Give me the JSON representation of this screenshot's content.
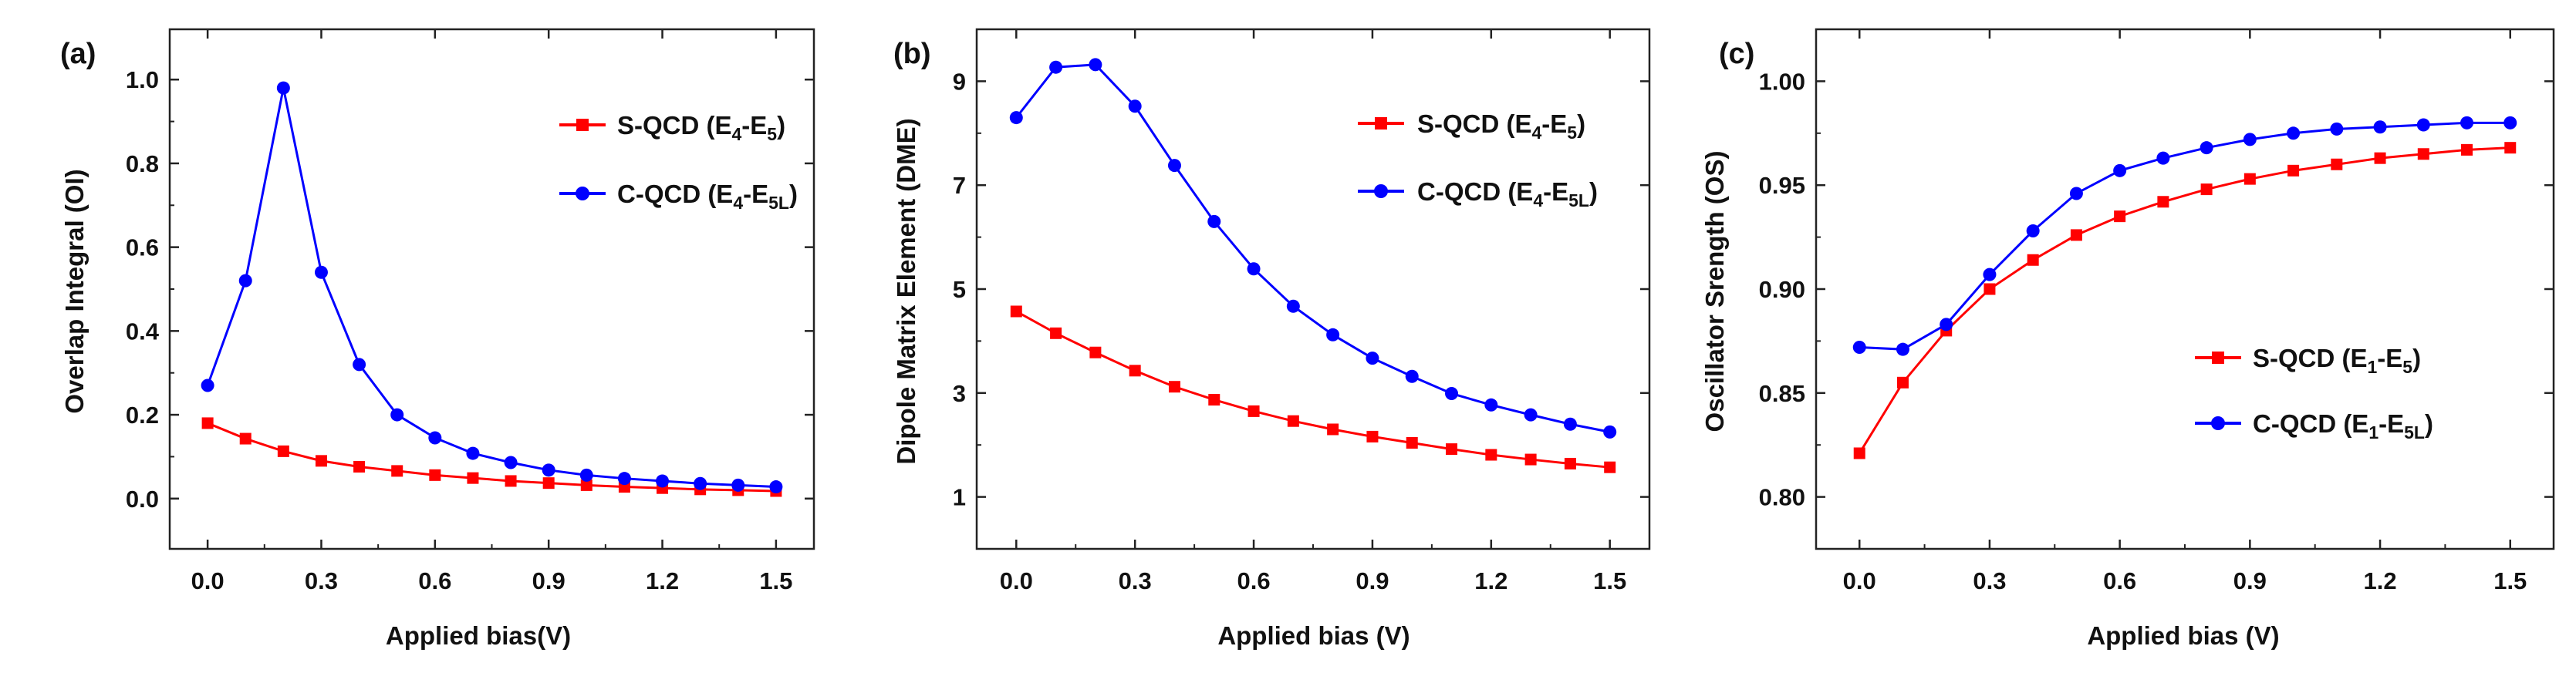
{
  "chart_data": [
    {
      "type": "line",
      "panel_label": "(a)",
      "xlabel": "Applied bias(V)",
      "ylabel": "Overlap Integral (OI)",
      "xlim": [
        -0.1,
        1.6
      ],
      "ylim": [
        -0.12,
        1.12
      ],
      "xticks": [
        0.0,
        0.3,
        0.6,
        0.9,
        1.2,
        1.5
      ],
      "xtick_labels": [
        "0.0",
        "0.3",
        "0.6",
        "0.9",
        "1.2",
        "1.5"
      ],
      "yticks": [
        0.0,
        0.2,
        0.4,
        0.6,
        0.8,
        1.0
      ],
      "ytick_labels": [
        "0.0",
        "0.2",
        "0.4",
        "0.6",
        "0.8",
        "1.0"
      ],
      "x": [
        0.0,
        0.1,
        0.2,
        0.3,
        0.4,
        0.5,
        0.6,
        0.7,
        0.8,
        0.9,
        1.0,
        1.1,
        1.2,
        1.3,
        1.4,
        1.5
      ],
      "legend_position": "top-right",
      "series": [
        {
          "name": "S-QCD",
          "legend": {
            "prefix": "S-QCD (E",
            "sub1": "4",
            "mid": "-E",
            "sub2": "5",
            "suffix": ")"
          },
          "color": "#ff0000",
          "marker": "square",
          "values": [
            0.18,
            0.143,
            0.113,
            0.09,
            0.076,
            0.066,
            0.056,
            0.049,
            0.042,
            0.037,
            0.032,
            0.028,
            0.025,
            0.022,
            0.02,
            0.018
          ]
        },
        {
          "name": "C-QCD",
          "legend": {
            "prefix": "C-QCD (E",
            "sub1": "4",
            "mid": "-E",
            "sub2": "5L",
            "suffix": ")"
          },
          "color": "#0000ff",
          "marker": "circle",
          "values": [
            0.27,
            0.52,
            0.98,
            0.54,
            0.32,
            0.2,
            0.145,
            0.108,
            0.086,
            0.068,
            0.056,
            0.048,
            0.042,
            0.036,
            0.032,
            0.028
          ]
        }
      ]
    },
    {
      "type": "line",
      "panel_label": "(b)",
      "xlabel": "Applied bias (V)",
      "ylabel": "Dipole Matrix Element (DME)",
      "xlim": [
        -0.1,
        1.6
      ],
      "ylim": [
        0.0,
        10.0
      ],
      "xticks": [
        0.0,
        0.3,
        0.6,
        0.9,
        1.2,
        1.5
      ],
      "xtick_labels": [
        "0.0",
        "0.3",
        "0.6",
        "0.9",
        "1.2",
        "1.5"
      ],
      "yticks": [
        1,
        3,
        5,
        7,
        9
      ],
      "ytick_labels": [
        "1",
        "3",
        "5",
        "7",
        "9"
      ],
      "x": [
        0.0,
        0.1,
        0.2,
        0.3,
        0.4,
        0.5,
        0.6,
        0.7,
        0.8,
        0.9,
        1.0,
        1.1,
        1.2,
        1.3,
        1.4,
        1.5
      ],
      "legend_position": "top-right",
      "series": [
        {
          "name": "S-QCD",
          "legend": {
            "prefix": "S-QCD (E",
            "sub1": "4",
            "mid": "-E",
            "sub2": "5",
            "suffix": ")"
          },
          "color": "#ff0000",
          "marker": "square",
          "values": [
            4.57,
            4.15,
            3.78,
            3.43,
            3.12,
            2.87,
            2.65,
            2.46,
            2.3,
            2.16,
            2.04,
            1.92,
            1.81,
            1.72,
            1.64,
            1.57
          ]
        },
        {
          "name": "C-QCD",
          "legend": {
            "prefix": "C-QCD (E",
            "sub1": "4",
            "mid": "-E",
            "sub2": "5L",
            "suffix": ")"
          },
          "color": "#0000ff",
          "marker": "circle",
          "values": [
            8.3,
            9.27,
            9.32,
            8.52,
            7.38,
            6.3,
            5.39,
            4.67,
            4.12,
            3.67,
            3.32,
            2.99,
            2.77,
            2.58,
            2.4,
            2.25
          ]
        }
      ]
    },
    {
      "type": "line",
      "panel_label": "(c)",
      "xlabel": "Applied bias (V)",
      "ylabel": "Oscillator Srength (OS)",
      "xlim": [
        -0.1,
        1.6
      ],
      "ylim": [
        0.775,
        1.025
      ],
      "xticks": [
        0.0,
        0.3,
        0.6,
        0.9,
        1.2,
        1.5
      ],
      "xtick_labels": [
        "0.0",
        "0.3",
        "0.6",
        "0.9",
        "1.2",
        "1.5"
      ],
      "yticks": [
        0.8,
        0.85,
        0.9,
        0.95,
        1.0
      ],
      "ytick_labels": [
        "0.80",
        "0.85",
        "0.90",
        "0.95",
        "1.00"
      ],
      "x": [
        0.0,
        0.1,
        0.2,
        0.3,
        0.4,
        0.5,
        0.6,
        0.7,
        0.8,
        0.9,
        1.0,
        1.1,
        1.2,
        1.3,
        1.4,
        1.5
      ],
      "legend_position": "center-right",
      "series": [
        {
          "name": "S-QCD",
          "legend": {
            "prefix": "S-QCD (E",
            "sub1": "1",
            "mid": "-E",
            "sub2": "5",
            "suffix": ")"
          },
          "color": "#ff0000",
          "marker": "square",
          "values": [
            0.821,
            0.855,
            0.88,
            0.9,
            0.914,
            0.926,
            0.935,
            0.942,
            0.948,
            0.953,
            0.957,
            0.96,
            0.963,
            0.965,
            0.967,
            0.968
          ]
        },
        {
          "name": "C-QCD",
          "legend": {
            "prefix": "C-QCD (E",
            "sub1": "1",
            "mid": "-E",
            "sub2": "5L",
            "suffix": ")"
          },
          "color": "#0000ff",
          "marker": "circle",
          "values": [
            0.872,
            0.871,
            0.883,
            0.907,
            0.928,
            0.946,
            0.957,
            0.963,
            0.968,
            0.972,
            0.975,
            0.977,
            0.978,
            0.979,
            0.98,
            0.98
          ]
        }
      ]
    }
  ]
}
